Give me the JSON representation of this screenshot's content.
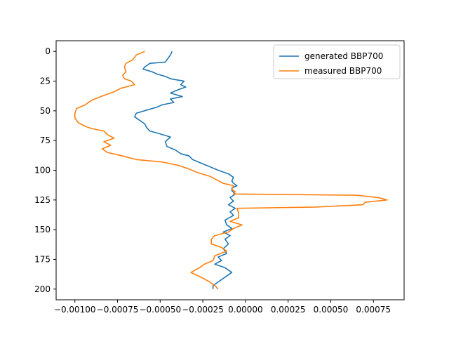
{
  "chart_data": {
    "type": "line",
    "title": "",
    "xlabel": "",
    "ylabel": "",
    "xlim": [
      -0.00111,
      0.00093
    ],
    "ylim": [
      209,
      -9
    ],
    "y_inverted": true,
    "grid": false,
    "legend": {
      "placement": "top-right"
    },
    "x_ticks": [
      -0.001,
      -0.00075,
      -0.0005,
      -0.00025,
      0.0,
      0.00025,
      0.0005,
      0.00075
    ],
    "x_tick_labels": [
      "−0.00100",
      "−0.00075",
      "−0.00050",
      "−0.00025",
      "0.00000",
      "0.00025",
      "0.00050",
      "0.00075"
    ],
    "y_ticks": [
      0,
      25,
      50,
      75,
      100,
      125,
      150,
      175,
      200
    ],
    "y_tick_labels": [
      "0",
      "25",
      "50",
      "75",
      "100",
      "125",
      "150",
      "175",
      "200"
    ],
    "series": [
      {
        "name": "generated BBP700",
        "color": "#1f77b4",
        "points": [
          [
            -0.00043,
            0
          ],
          [
            -0.00044,
            3
          ],
          [
            -0.00046,
            7
          ],
          [
            -0.00047,
            9
          ],
          [
            -0.00056,
            10
          ],
          [
            -0.00059,
            13
          ],
          [
            -0.0006,
            15
          ],
          [
            -0.00055,
            17
          ],
          [
            -0.00052,
            19
          ],
          [
            -0.00047,
            21
          ],
          [
            -0.00044,
            23
          ],
          [
            -0.00036,
            25
          ],
          [
            -0.00038,
            28
          ],
          [
            -0.00035,
            30
          ],
          [
            -0.00039,
            32
          ],
          [
            -0.00044,
            35
          ],
          [
            -0.00037,
            38
          ],
          [
            -0.00044,
            40
          ],
          [
            -0.00042,
            43
          ],
          [
            -0.00049,
            45
          ],
          [
            -0.00052,
            47
          ],
          [
            -0.00057,
            49
          ],
          [
            -0.00064,
            52
          ],
          [
            -0.00065,
            55
          ],
          [
            -0.00062,
            58
          ],
          [
            -0.00059,
            61
          ],
          [
            -0.00058,
            64
          ],
          [
            -0.00056,
            67
          ],
          [
            -0.00051,
            69
          ],
          [
            -0.00044,
            72
          ],
          [
            -0.00047,
            76
          ],
          [
            -0.00046,
            80
          ],
          [
            -0.00041,
            83
          ],
          [
            -0.00038,
            86
          ],
          [
            -0.00033,
            88
          ],
          [
            -0.00031,
            91
          ],
          [
            -0.00026,
            94
          ],
          [
            -0.00021,
            97
          ],
          [
            -0.00016,
            100
          ],
          [
            -0.0001,
            103
          ],
          [
            -7e-05,
            106
          ],
          [
            -8e-05,
            109
          ],
          [
            -7e-05,
            111
          ],
          [
            -5e-05,
            113
          ],
          [
            -8e-05,
            115
          ],
          [
            -8e-05,
            117
          ],
          [
            -6e-05,
            120
          ],
          [
            -9e-05,
            123
          ],
          [
            -7e-05,
            126
          ],
          [
            -0.0001,
            129
          ],
          [
            -6e-05,
            132
          ],
          [
            -9e-05,
            135
          ],
          [
            -7e-05,
            138
          ],
          [
            -0.00012,
            142
          ],
          [
            -0.00011,
            146
          ],
          [
            -8e-05,
            149
          ],
          [
            -0.00013,
            152
          ],
          [
            -9e-05,
            155
          ],
          [
            -0.00012,
            158
          ],
          [
            -0.0001,
            162
          ],
          [
            -0.00013,
            166
          ],
          [
            -0.00011,
            170
          ],
          [
            -0.00016,
            173
          ],
          [
            -0.00014,
            176
          ],
          [
            -0.00018,
            179
          ],
          [
            -0.00012,
            182
          ],
          [
            -8e-05,
            186
          ],
          [
            -0.00012,
            190
          ],
          [
            -0.00016,
            194
          ],
          [
            -0.00019,
            197
          ],
          [
            -0.00019,
            200
          ]
        ]
      },
      {
        "name": "measured BBP700",
        "color": "#ff7f0e",
        "points": [
          [
            -0.00059,
            0
          ],
          [
            -0.00064,
            3
          ],
          [
            -0.00066,
            7
          ],
          [
            -0.0007,
            10
          ],
          [
            -0.00071,
            13
          ],
          [
            -0.0007,
            17
          ],
          [
            -0.00072,
            20
          ],
          [
            -0.00071,
            23
          ],
          [
            -0.00067,
            25
          ],
          [
            -0.00065,
            28
          ],
          [
            -0.00073,
            31
          ],
          [
            -0.00077,
            34
          ],
          [
            -0.00083,
            37
          ],
          [
            -0.0009,
            41
          ],
          [
            -0.00094,
            45
          ],
          [
            -0.00099,
            48
          ],
          [
            -0.001,
            52
          ],
          [
            -0.001,
            56
          ],
          [
            -0.00098,
            60
          ],
          [
            -0.00094,
            63
          ],
          [
            -0.0009,
            65
          ],
          [
            -0.00083,
            67
          ],
          [
            -0.00081,
            70
          ],
          [
            -0.00077,
            73
          ],
          [
            -0.00083,
            76
          ],
          [
            -0.00079,
            79
          ],
          [
            -0.00084,
            82
          ],
          [
            -0.00081,
            85
          ],
          [
            -0.00072,
            88
          ],
          [
            -0.00064,
            91
          ],
          [
            -0.00049,
            93
          ],
          [
            -0.00039,
            96
          ],
          [
            -0.00033,
            99
          ],
          [
            -0.00028,
            102
          ],
          [
            -0.00021,
            105
          ],
          [
            -0.00017,
            108
          ],
          [
            -0.00013,
            111
          ],
          [
            -7e-05,
            113
          ],
          [
            -8e-05,
            116
          ],
          [
            -6e-05,
            118
          ],
          [
            -7e-05,
            120
          ],
          [
            0.00065,
            121
          ],
          [
            0.00078,
            123
          ],
          [
            0.00083,
            125
          ],
          [
            0.0007,
            127
          ],
          [
            0.00069,
            129
          ],
          [
            0.00041,
            131
          ],
          [
            -5e-05,
            132
          ],
          [
            -4e-05,
            136
          ],
          [
            -4e-05,
            140
          ],
          [
            -9e-05,
            143
          ],
          [
            -2e-05,
            146
          ],
          [
            -7e-05,
            149
          ],
          [
            -0.0001,
            152
          ],
          [
            -0.00018,
            155
          ],
          [
            -0.0002,
            158
          ],
          [
            -0.0002,
            162
          ],
          [
            -0.00014,
            165
          ],
          [
            -0.00011,
            168
          ],
          [
            -0.00018,
            172
          ],
          [
            -0.00019,
            176
          ],
          [
            -0.00024,
            179
          ],
          [
            -0.00027,
            182
          ],
          [
            -0.00032,
            186
          ],
          [
            -0.00026,
            190
          ],
          [
            -0.00021,
            194
          ],
          [
            -0.00018,
            197
          ],
          [
            -0.00016,
            200
          ]
        ]
      }
    ]
  }
}
